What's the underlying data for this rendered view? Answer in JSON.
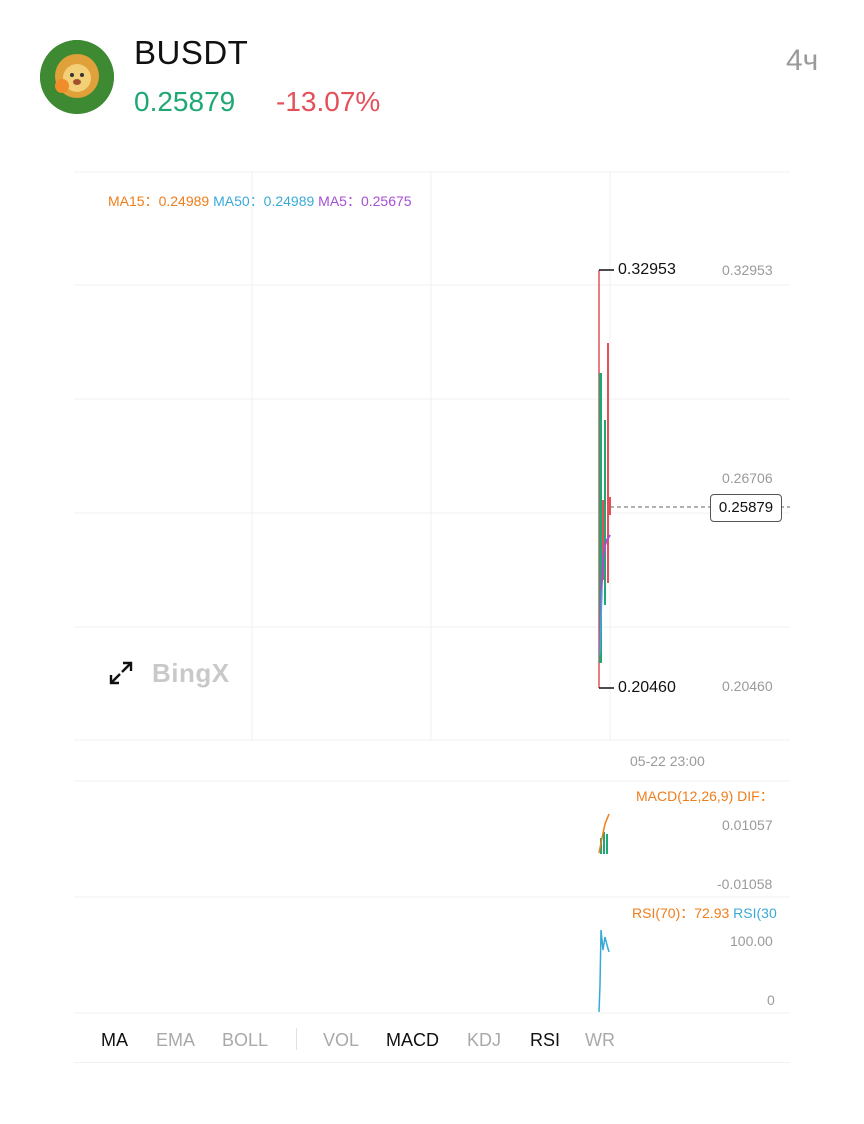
{
  "header": {
    "ticker": "BUSDT",
    "price": "0.25879",
    "change": "-13.07%",
    "interval": "4ч"
  },
  "colors": {
    "up": "#1fa774",
    "down": "#e4505a",
    "ma15": "#ef7d1a",
    "ma50": "#3aa9d8",
    "ma5": "#a64fd6"
  },
  "chart": {
    "ma_legend": [
      {
        "label": "MA15：",
        "value": "0.24989"
      },
      {
        "label": "MA50：",
        "value": "0.24989"
      },
      {
        "label": "MA5：",
        "value": "0.25675"
      }
    ],
    "high_marker": "0.32953",
    "low_marker": "0.20460",
    "price_axis": [
      "0.32953",
      "0.26706",
      "0.20460"
    ],
    "current_price_tag": "0.25879",
    "time_label": "05-22 23:00",
    "brand": "BingX",
    "macd": {
      "label": "MACD(12,26,9)",
      "dif_label": "DIF：",
      "axis": [
        "0.01057",
        "-0.01058"
      ]
    },
    "rsi": {
      "label": "RSI(70)：",
      "value": "72.93",
      "second_label": "RSI(30",
      "axis": [
        "100.00",
        "0"
      ]
    }
  },
  "chart_data": {
    "type": "candlestick",
    "ylim": [
      0.2046,
      0.32953
    ],
    "high": 0.32953,
    "low": 0.2046,
    "last": 0.25879,
    "ma": [
      {
        "name": "MA15",
        "value": 0.24989
      },
      {
        "name": "MA50",
        "value": 0.24989
      },
      {
        "name": "MA5",
        "value": 0.25675
      }
    ],
    "rsi70": 72.93
  },
  "indicator_tabs": [
    {
      "label": "MA",
      "active": true
    },
    {
      "label": "EMA",
      "active": false
    },
    {
      "label": "BOLL",
      "active": false
    },
    {
      "label": "VOL",
      "active": false
    },
    {
      "label": "MACD",
      "active": true
    },
    {
      "label": "KDJ",
      "active": false
    },
    {
      "label": "RSI",
      "active": true
    },
    {
      "label": "WR",
      "active": false
    }
  ]
}
